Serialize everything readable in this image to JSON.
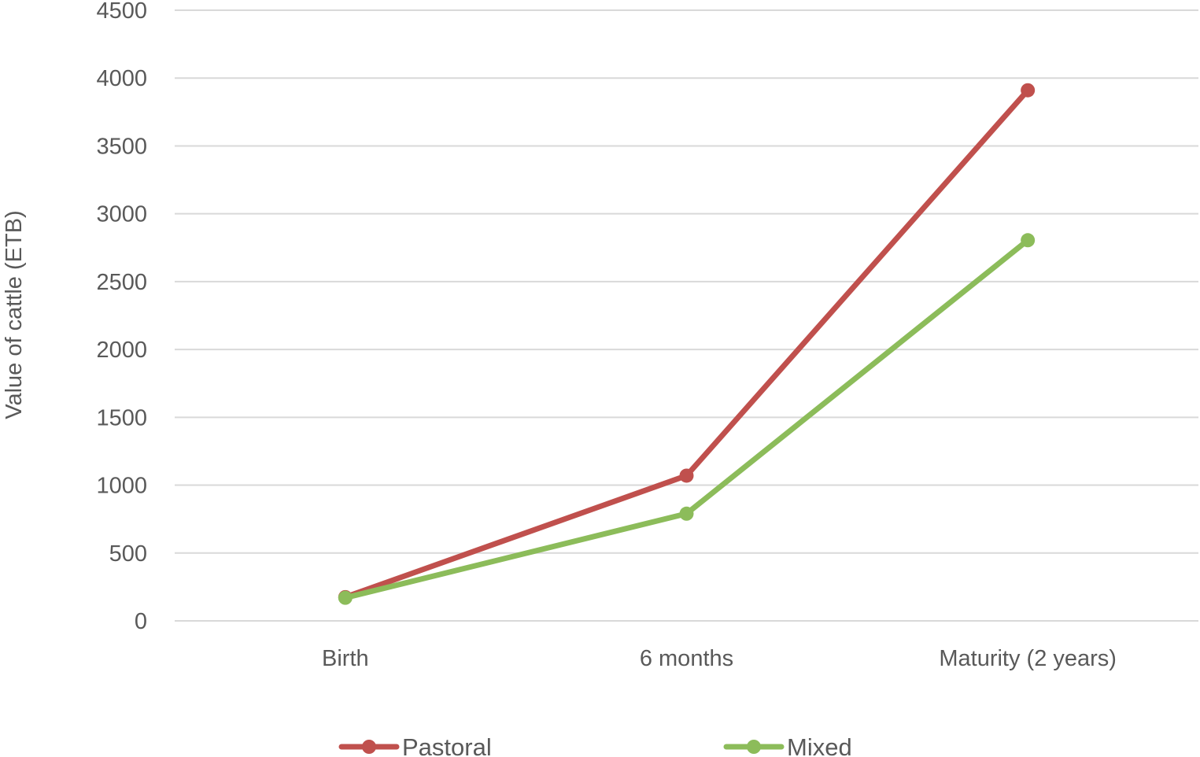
{
  "chart_data": {
    "type": "line",
    "title": "",
    "xlabel": "",
    "ylabel": "Value of cattle (ETB)",
    "categories": [
      "Birth",
      "6 months",
      "Maturity (2 years)"
    ],
    "series": [
      {
        "name": "Pastoral",
        "values": [
          175,
          1070,
          3910
        ],
        "color": "#c0504d"
      },
      {
        "name": "Mixed",
        "values": [
          170,
          790,
          2805
        ],
        "color": "#8cbc5a"
      }
    ],
    "ylim": [
      0,
      4500
    ],
    "yticks": [
      "0",
      "500",
      "1000",
      "1500",
      "2000",
      "2500",
      "3000",
      "3500",
      "4000",
      "4500"
    ],
    "ytick_values": [
      0,
      500,
      1000,
      1500,
      2000,
      2500,
      3000,
      3500,
      4000,
      4500
    ],
    "grid": true,
    "gridline_color": "#d9d9d9",
    "text_color": "#595959",
    "legend_position": "bottom",
    "marker": "circle"
  }
}
